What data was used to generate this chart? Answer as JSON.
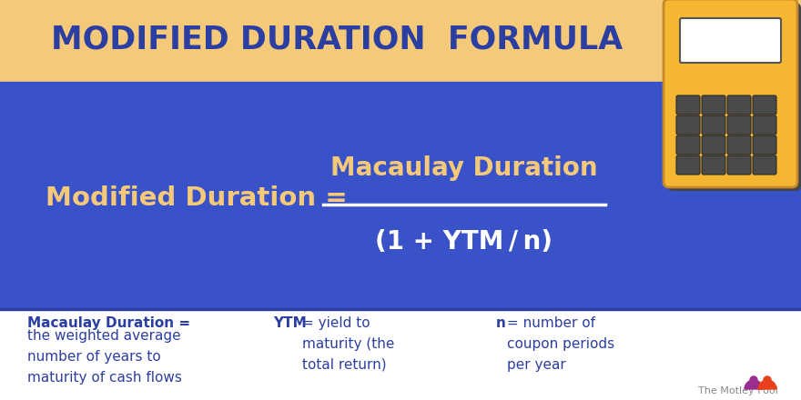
{
  "title": "MODIFIED DURATION  FORMULA",
  "title_color": "#2B3EA1",
  "header_bg": "#F5C97A",
  "formula_bg": "#3A52C7",
  "bottom_bg": "#FFFFFF",
  "formula_left": "Modified Duration =",
  "formula_numerator": "Macaulay Duration",
  "formula_denominator": "(1 + YTM / n)",
  "formula_color_left": "#F5C97A",
  "formula_color_num": "#F5C97A",
  "formula_color_denom": "#FFFFFF",
  "line_color": "#FFFFFF",
  "def1_bold": "Macaulay Duration =",
  "def1_rest": "the weighted average\nnumber of years to\nmaturity of cash flows",
  "def2_bold": "YTM",
  "def2_rest": " = yield to\nmaturity (the\ntotal return)",
  "def3_bold": "n",
  "def3_rest": " = number of\ncoupon periods\nper year",
  "def_color": "#2B3EA1",
  "separator_color": "#3A52C7",
  "fig_width": 8.8,
  "fig_height": 4.4,
  "dpi": 100
}
